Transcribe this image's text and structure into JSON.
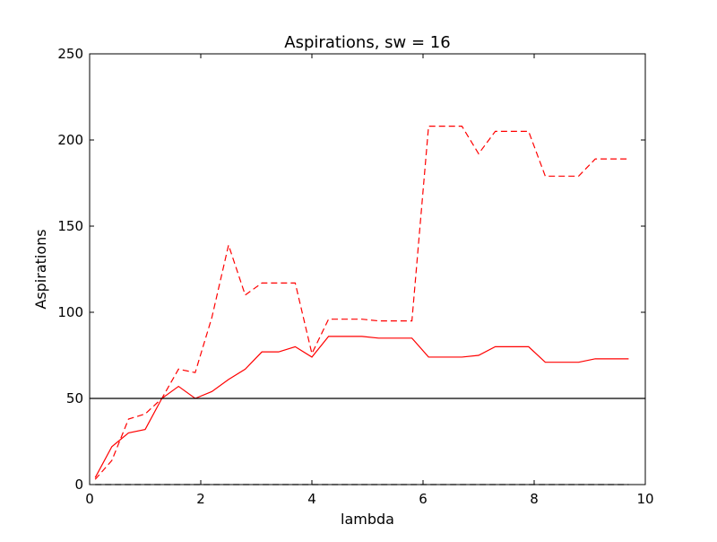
{
  "chart_data": {
    "type": "line",
    "title": "Aspirations, sw = 16",
    "xlabel": "lambda",
    "ylabel": "Aspirations",
    "xlim": [
      0,
      10
    ],
    "ylim": [
      0,
      250
    ],
    "xticks": [
      0,
      2,
      4,
      6,
      8,
      10
    ],
    "yticks": [
      0,
      50,
      100,
      150,
      200,
      250
    ],
    "grid": false,
    "x": [
      0.1,
      0.4,
      0.7,
      1.0,
      1.3,
      1.6,
      1.9,
      2.2,
      2.5,
      2.8,
      3.1,
      3.4,
      3.7,
      4.0,
      4.3,
      4.6,
      4.9,
      5.2,
      5.5,
      5.8,
      6.1,
      6.4,
      6.7,
      7.0,
      7.3,
      7.6,
      7.9,
      8.2,
      8.5,
      8.8,
      9.1,
      9.4,
      9.7
    ],
    "series": [
      {
        "style": "solid",
        "color": "#ff0000",
        "values": [
          4,
          22,
          30,
          32,
          50,
          57,
          50,
          54,
          61,
          67,
          77,
          77,
          80,
          74,
          86,
          86,
          86,
          85,
          85,
          85,
          74,
          74,
          74,
          75,
          80,
          80,
          80,
          71,
          71,
          71,
          73,
          73,
          73
        ]
      },
      {
        "style": "dashed",
        "color": "#ff0000",
        "values": [
          3,
          14,
          38,
          41,
          50,
          67,
          65,
          97,
          139,
          110,
          117,
          117,
          117,
          76,
          96,
          96,
          96,
          95,
          95,
          95,
          208,
          208,
          208,
          192,
          205,
          205,
          205,
          179,
          179,
          179,
          189,
          189,
          189
        ]
      },
      {
        "style": "solid",
        "color": "#000000",
        "values": [
          50,
          50,
          50,
          50,
          50,
          50,
          50,
          50,
          50,
          50,
          50,
          50,
          50,
          50,
          50,
          50,
          50,
          50,
          50,
          50,
          50,
          50,
          50,
          50,
          50,
          50,
          50,
          50,
          50,
          50,
          50,
          50,
          50
        ],
        "extend_to_axes": true
      },
      {
        "style": "dashed",
        "color": "#000000",
        "values": [
          0,
          0,
          0,
          0,
          0,
          0,
          0,
          0,
          0,
          0,
          0,
          0,
          0,
          0,
          0,
          0,
          0,
          0,
          0,
          0,
          0,
          0,
          0,
          0,
          0,
          0,
          0,
          0,
          0,
          0,
          0,
          0,
          0
        ]
      }
    ]
  }
}
